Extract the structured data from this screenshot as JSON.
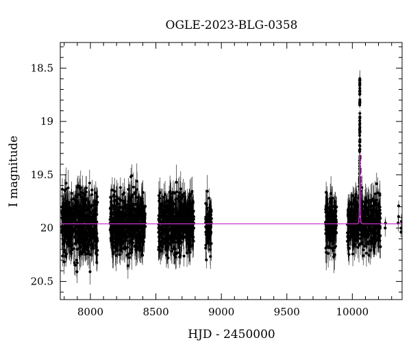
{
  "chart_data": {
    "type": "scatter",
    "title": "OGLE-2023-BLG-0358",
    "xlabel": "HJD - 2450000",
    "ylabel": "I magnitude",
    "xlim": [
      7770,
      10380
    ],
    "ylim": [
      20.67,
      18.26
    ],
    "y_inverted": true,
    "x_ticks": [
      8000,
      8500,
      9000,
      9500,
      10000
    ],
    "x_tick_labels": [
      "8000",
      "8500",
      "9000",
      "9500",
      "10000"
    ],
    "y_ticks": [
      18.5,
      19,
      19.5,
      20,
      20.5
    ],
    "y_tick_labels": [
      "18.5",
      "19",
      "19.5",
      "20",
      "20.5"
    ],
    "grid": false,
    "legend": "none",
    "baseline_mag": 19.96,
    "seasons": [
      {
        "start": 7780,
        "end": 8055,
        "n": 520,
        "sigma": 0.22,
        "err": 0.12
      },
      {
        "start": 8150,
        "end": 8420,
        "n": 520,
        "sigma": 0.2,
        "err": 0.12
      },
      {
        "start": 8520,
        "end": 8790,
        "n": 520,
        "sigma": 0.19,
        "err": 0.12
      },
      {
        "start": 8880,
        "end": 8925,
        "n": 90,
        "sigma": 0.17,
        "err": 0.12
      },
      {
        "start": 9795,
        "end": 9880,
        "n": 170,
        "sigma": 0.17,
        "err": 0.12
      },
      {
        "start": 9960,
        "end": 10215,
        "n": 460,
        "sigma": 0.18,
        "err": 0.12
      },
      {
        "start": 10250,
        "end": 10260,
        "n": 2,
        "sigma": 0.05,
        "err": 0.06
      },
      {
        "start": 10340,
        "end": 10375,
        "n": 6,
        "sigma": 0.12,
        "err": 0.08
      }
    ],
    "event": {
      "t0": 10057,
      "peak_mag": 18.62,
      "tE": 3.2,
      "u0": 0.16
    },
    "series": [
      {
        "role": "data",
        "color": "#000000"
      },
      {
        "role": "model",
        "color": "#cc33cc"
      }
    ]
  }
}
